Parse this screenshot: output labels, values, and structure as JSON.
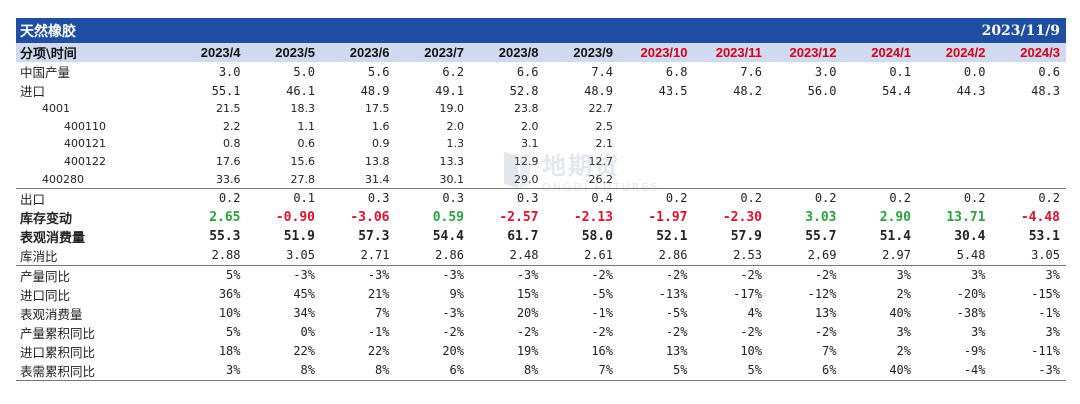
{
  "title": "天然橡胶",
  "date": "2023/11/9",
  "header": {
    "label": "分项\\时间",
    "months": [
      "2023/4",
      "2023/5",
      "2023/6",
      "2023/7",
      "2023/8",
      "2023/9",
      "2023/10",
      "2023/11",
      "2023/12",
      "2024/1",
      "2024/2",
      "2024/3"
    ],
    "future_start_index": 6
  },
  "watermark": {
    "cn": "地期货",
    "en": "ONGDI FUTURES"
  },
  "colors": {
    "title_bg": "#1f4ea2",
    "header_bg": "#cfdaf0",
    "future": "#d4001a",
    "positive": "#2aa13c",
    "negative": "#e0112b"
  },
  "rows": [
    {
      "label": "中国产量",
      "style": "lbl",
      "values": [
        "3.0",
        "5.0",
        "5.6",
        "6.2",
        "6.6",
        "7.4",
        "6.8",
        "7.6",
        "3.0",
        "0.1",
        "0.0",
        "0.6"
      ]
    },
    {
      "label": "进口",
      "style": "lbl",
      "values": [
        "55.1",
        "46.1",
        "48.9",
        "49.1",
        "52.8",
        "48.9",
        "43.5",
        "48.2",
        "56.0",
        "54.4",
        "44.3",
        "48.3"
      ]
    },
    {
      "label": "4001",
      "style": "sub1",
      "values": [
        "21.5",
        "18.3",
        "17.5",
        "19.0",
        "23.8",
        "22.7",
        "",
        "",
        "",
        "",
        "",
        ""
      ]
    },
    {
      "label": "400110",
      "style": "sub2",
      "values": [
        "2.2",
        "1.1",
        "1.6",
        "2.0",
        "2.0",
        "2.5",
        "",
        "",
        "",
        "",
        "",
        ""
      ]
    },
    {
      "label": "400121",
      "style": "sub2",
      "values": [
        "0.8",
        "0.6",
        "0.9",
        "1.3",
        "3.1",
        "2.1",
        "",
        "",
        "",
        "",
        "",
        ""
      ]
    },
    {
      "label": "400122",
      "style": "sub2",
      "values": [
        "17.6",
        "15.6",
        "13.8",
        "13.3",
        "12.9",
        "12.7",
        "",
        "",
        "",
        "",
        "",
        ""
      ]
    },
    {
      "label": "400280",
      "style": "sub1",
      "values": [
        "33.6",
        "27.8",
        "31.4",
        "30.1",
        "29.0",
        "26.2",
        "",
        "",
        "",
        "",
        "",
        ""
      ]
    },
    {
      "label": "出口",
      "style": "lbl",
      "values": [
        "0.2",
        "0.1",
        "0.3",
        "0.3",
        "0.3",
        "0.4",
        "0.2",
        "0.2",
        "0.2",
        "0.2",
        "0.2",
        "0.2"
      ]
    },
    {
      "label": "库存变动",
      "style": "lbl",
      "colored": true,
      "values": [
        "2.65",
        "-0.90",
        "-3.06",
        "0.59",
        "-2.57",
        "-2.13",
        "-1.97",
        "-2.30",
        "3.03",
        "2.90",
        "13.71",
        "-4.48"
      ]
    },
    {
      "label": "表观消费量",
      "style": "lbl",
      "values": [
        "55.3",
        "51.9",
        "57.3",
        "54.4",
        "61.7",
        "58.0",
        "52.1",
        "57.9",
        "55.7",
        "51.4",
        "30.4",
        "53.1"
      ]
    },
    {
      "label": "库消比",
      "style": "lbl",
      "values": [
        "2.88",
        "3.05",
        "2.71",
        "2.86",
        "2.48",
        "2.61",
        "2.86",
        "2.53",
        "2.69",
        "2.97",
        "5.48",
        "3.05"
      ]
    },
    {
      "label": "产量同比",
      "style": "lbl",
      "values": [
        "5%",
        "-3%",
        "-3%",
        "-3%",
        "-3%",
        "-2%",
        "-2%",
        "-2%",
        "-2%",
        "3%",
        "3%",
        "3%"
      ]
    },
    {
      "label": "进口同比",
      "style": "lbl",
      "values": [
        "36%",
        "45%",
        "21%",
        "9%",
        "15%",
        "-5%",
        "-13%",
        "-17%",
        "-12%",
        "2%",
        "-20%",
        "-15%"
      ]
    },
    {
      "label": "表观消费量",
      "style": "lbl",
      "values": [
        "10%",
        "34%",
        "7%",
        "-3%",
        "20%",
        "-1%",
        "-5%",
        "4%",
        "13%",
        "40%",
        "-38%",
        "-1%"
      ]
    },
    {
      "label": "产量累积同比",
      "style": "lbl",
      "values": [
        "5%",
        "0%",
        "-1%",
        "-2%",
        "-2%",
        "-2%",
        "-2%",
        "-2%",
        "-2%",
        "3%",
        "3%",
        "3%"
      ]
    },
    {
      "label": "进口累积同比",
      "style": "lbl",
      "values": [
        "18%",
        "22%",
        "22%",
        "20%",
        "19%",
        "16%",
        "13%",
        "10%",
        "7%",
        "2%",
        "-9%",
        "-11%"
      ]
    },
    {
      "label": "表需累积同比",
      "style": "lbl",
      "values": [
        "3%",
        "8%",
        "8%",
        "6%",
        "8%",
        "7%",
        "5%",
        "5%",
        "6%",
        "40%",
        "-4%",
        "-3%"
      ]
    }
  ]
}
